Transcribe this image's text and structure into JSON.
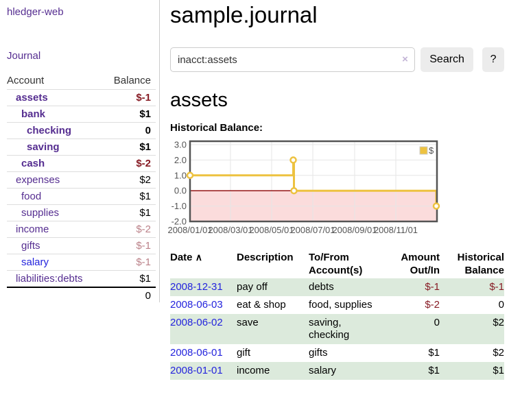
{
  "colors": {
    "link_purple": "#552d90",
    "link_blue": "#2424dd",
    "negative_strong": "#871c25",
    "negative_soft": "#bb8289",
    "row_green": "#dceadc",
    "button_gray": "#ececec",
    "series_gold": "#EDC240"
  },
  "sidebar": {
    "app_title": "hledger-web",
    "nav": [
      {
        "label": "Journal"
      }
    ],
    "accounts_table": {
      "headers": [
        "Account",
        "Balance"
      ],
      "rows": [
        {
          "account": "assets",
          "balance": "$-1",
          "depth": 1,
          "bold": true,
          "negative": "strong"
        },
        {
          "account": "bank",
          "balance": "$1",
          "depth": 2,
          "bold": true,
          "negative": "none"
        },
        {
          "account": "checking",
          "balance": "0",
          "depth": 3,
          "bold": true,
          "negative": "none"
        },
        {
          "account": "saving",
          "balance": "$1",
          "depth": 3,
          "bold": true,
          "negative": "none"
        },
        {
          "account": "cash",
          "balance": "$-2",
          "depth": 2,
          "bold": true,
          "negative": "strong"
        },
        {
          "account": "expenses",
          "balance": "$2",
          "depth": 1,
          "bold": false,
          "negative": "none"
        },
        {
          "account": "food",
          "balance": "$1",
          "depth": 2,
          "bold": false,
          "negative": "none"
        },
        {
          "account": "supplies",
          "balance": "$1",
          "depth": 2,
          "bold": false,
          "negative": "none"
        },
        {
          "account": "income",
          "balance": "$-2",
          "depth": 1,
          "bold": false,
          "negative": "soft"
        },
        {
          "account": "gifts",
          "balance": "$-1",
          "depth": 2,
          "bold": false,
          "negative": "soft"
        },
        {
          "account": "salary",
          "balance": "$-1",
          "depth": 2,
          "bold": false,
          "negative": "soft",
          "unvisited": true
        },
        {
          "account": "liabilities:debts",
          "balance": "$1",
          "depth": 1,
          "bold": false,
          "negative": "none"
        }
      ],
      "total": "0"
    }
  },
  "main": {
    "title": "sample.journal",
    "search": {
      "value": "inacct:assets",
      "clear_icon": "×",
      "button_label": "Search",
      "help_label": "?"
    },
    "section_title": "assets"
  },
  "chart_data": {
    "type": "line",
    "style": "step",
    "title": "Historical Balance:",
    "series": [
      {
        "name": "$",
        "color": "#EDC240",
        "points": [
          [
            "2008-01-01",
            1
          ],
          [
            "2008-06-02",
            2
          ],
          [
            "2008-06-03",
            0
          ],
          [
            "2008-12-31",
            -1
          ]
        ]
      }
    ],
    "x_domain": [
      "2008-01-01",
      "2009-01-01"
    ],
    "x_ticks": [
      {
        "date": "2008-01-01",
        "label": "2008/01/01"
      },
      {
        "date": "2008-03-01",
        "label": "2008/03/01"
      },
      {
        "date": "2008-05-01",
        "label": "2008/05/01"
      },
      {
        "date": "2008-07-01",
        "label": "2008/07/01"
      },
      {
        "date": "2008-09-01",
        "label": "2008/09/01"
      },
      {
        "date": "2008-11-01",
        "label": "2008/11/01"
      }
    ],
    "y_ticks": [
      3.0,
      2.0,
      1.0,
      0.0,
      -1.0,
      -2.0
    ],
    "ylim": [
      -2,
      3
    ],
    "grid": true,
    "legend_position": "top-right",
    "negative_region_color": "#fbdcdc",
    "zero_line_color": "#8b0000",
    "border_color": "#545454",
    "tick_label_color": "#545454"
  },
  "register": {
    "headers": [
      "Date",
      "Description",
      "To/From Account(s)",
      "Amount Out/In",
      "Historical Balance"
    ],
    "sort_icon": "∧",
    "rows": [
      {
        "date": "2008-12-31",
        "description": "pay off",
        "accounts": "debts",
        "amount": "$-1",
        "balance": "$-1"
      },
      {
        "date": "2008-06-03",
        "description": "eat & shop",
        "accounts": "food, supplies",
        "amount": "$-2",
        "balance": "0"
      },
      {
        "date": "2008-06-02",
        "description": "save",
        "accounts": "saving, checking",
        "amount": "0",
        "balance": "$2"
      },
      {
        "date": "2008-06-01",
        "description": "gift",
        "accounts": "gifts",
        "amount": "$1",
        "balance": "$2"
      },
      {
        "date": "2008-01-01",
        "description": "income",
        "accounts": "salary",
        "amount": "$1",
        "balance": "$1"
      }
    ]
  }
}
